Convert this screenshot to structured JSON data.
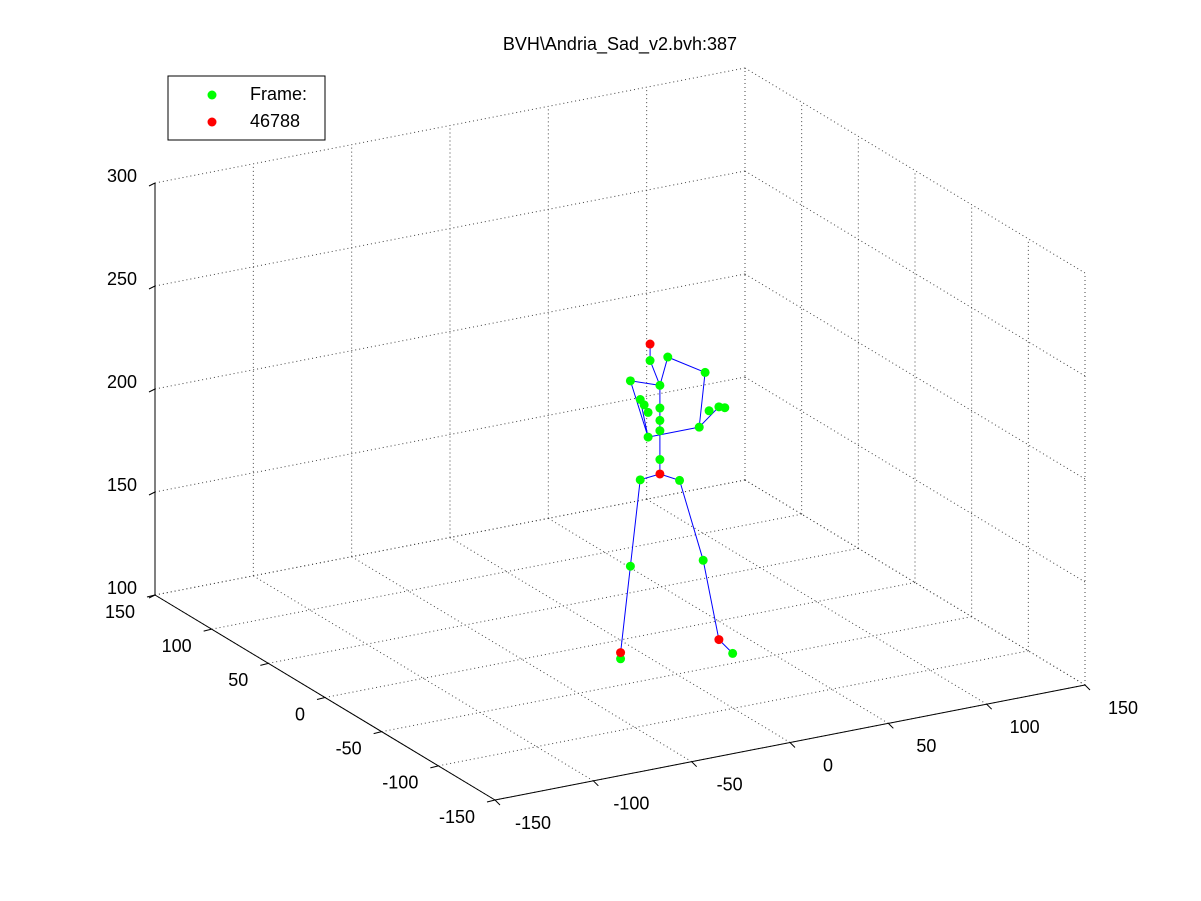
{
  "chart_data": {
    "type": "scatter3",
    "title": "BVH\\Andria_Sad_v2.bvh:387",
    "xlim": [
      -150,
      150
    ],
    "xticks": [
      -150,
      -100,
      -50,
      0,
      50,
      100,
      150
    ],
    "ylim": [
      -150,
      150
    ],
    "yticks": [
      -150,
      -100,
      -50,
      0,
      50,
      100,
      150
    ],
    "zlim": [
      100,
      300
    ],
    "zticks": [
      100,
      150,
      200,
      250,
      300
    ],
    "grid": true,
    "legend": "northwest",
    "lines": {
      "color": "#0000ff",
      "x": [
        3,
        -7,
        -12,
        -17,
        -17,
        null,
        3,
        13,
        25,
        33,
        40,
        null,
        3,
        3,
        3,
        3,
        3,
        -2,
        -2,
        null,
        3,
        -12,
        -3,
        -7,
        null,
        3,
        7,
        26,
        23,
        33,
        null,
        -3,
        23
      ],
      "y": [
        -30,
        -30,
        -30,
        -30,
        -30,
        null,
        -30,
        -30,
        -30,
        -30,
        -30,
        null,
        -30,
        -30,
        -30,
        -30,
        -30,
        -30,
        -30,
        null,
        -30,
        -30,
        -30,
        -30,
        null,
        -30,
        -30,
        -30,
        -30,
        -30,
        null,
        -30,
        -30
      ],
      "z": [
        190,
        189,
        148,
        107,
        104,
        null,
        190,
        185,
        144,
        104,
        96,
        null,
        190,
        197,
        211,
        222,
        233,
        246,
        254,
        null,
        233,
        238,
        209,
        228,
        null,
        233,
        246,
        235,
        209,
        217,
        null,
        209,
        209
      ]
    },
    "series": [
      {
        "name": "Frame:",
        "color": "#00ff00",
        "x": [
          -2,
          7,
          -12,
          26,
          3,
          -7,
          -5,
          3,
          -3,
          3,
          28,
          33,
          36,
          23,
          3,
          -3,
          3,
          -7,
          13,
          -12,
          25,
          -17,
          40
        ],
        "y": [
          -30,
          -30,
          -30,
          -30,
          -30,
          -30,
          -30,
          -30,
          -30,
          -30,
          -30,
          -30,
          -30,
          -30,
          -30,
          -30,
          -30,
          -30,
          -30,
          -30,
          -30,
          -30,
          -30
        ],
        "z": [
          246,
          246,
          238,
          235,
          233,
          228,
          225,
          222,
          221,
          216,
          216,
          217,
          216,
          209,
          211,
          209,
          197,
          189,
          185,
          148,
          144,
          104,
          96
        ]
      },
      {
        "name": "46788",
        "color": "#ff0000",
        "x": [
          -2,
          3,
          -17,
          33
        ],
        "y": [
          -30,
          -30,
          -30,
          -30
        ],
        "z": [
          254,
          190,
          107,
          104
        ]
      }
    ]
  }
}
